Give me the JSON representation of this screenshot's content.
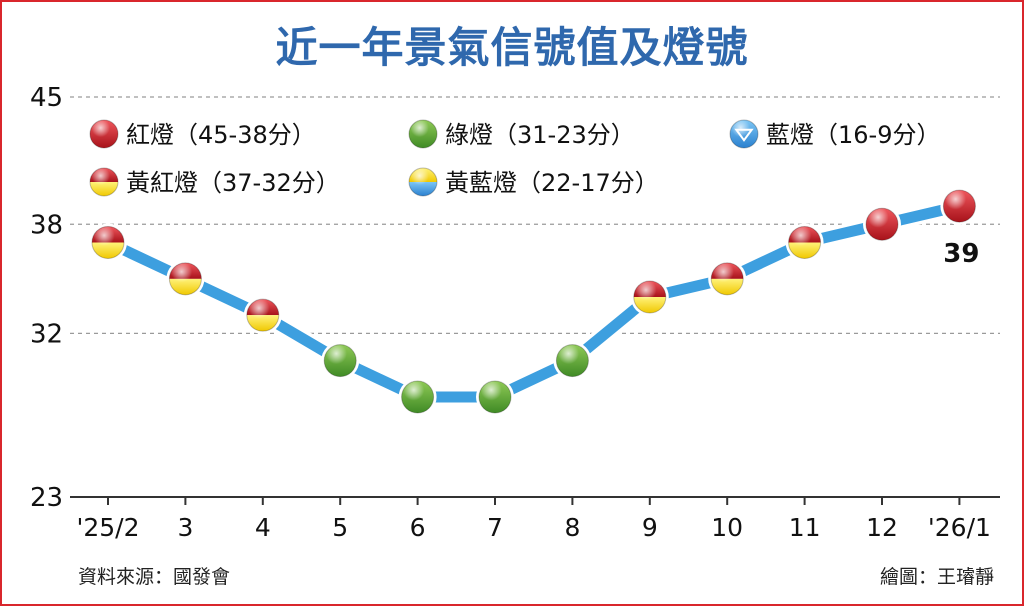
{
  "title": "近一年景氣信號值及燈號",
  "source": "資料來源：國發會",
  "credit": "繪圖：王璿靜",
  "chart_data": {
    "type": "line",
    "categories": [
      "'25/2",
      "3",
      "4",
      "5",
      "6",
      "7",
      "8",
      "9",
      "10",
      "11",
      "12",
      "'26/1"
    ],
    "y_ticks": [
      45,
      38,
      32,
      23
    ],
    "ylim": [
      23,
      45
    ],
    "grid": true,
    "series": [
      {
        "values": [
          37,
          35,
          33,
          30.5,
          28.5,
          28.5,
          30.5,
          34,
          35,
          37,
          38,
          39
        ],
        "lights": [
          "yellow-red",
          "yellow-red",
          "yellow-red",
          "green",
          "green",
          "green",
          "green",
          "yellow-red",
          "yellow-red",
          "yellow-red",
          "red",
          "red"
        ],
        "line_color": "#3d9fdf"
      }
    ],
    "data_labels": [
      {
        "index": 11,
        "text": "39"
      }
    ],
    "legend": {
      "placement": "top-left",
      "items": [
        {
          "light": "red",
          "label": "紅燈（45-38分）"
        },
        {
          "light": "green",
          "label": "綠燈（31-23分）"
        },
        {
          "light": "blue",
          "label": "藍燈（16-9分）"
        },
        {
          "light": "yellow-red",
          "label": "黃紅燈（37-32分）"
        },
        {
          "light": "yellow-blue",
          "label": "黃藍燈（22-17分）"
        }
      ]
    }
  }
}
